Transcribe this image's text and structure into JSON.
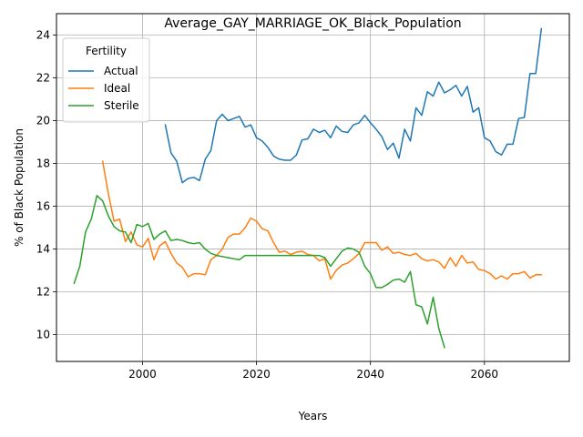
{
  "chart_data": {
    "type": "line",
    "title": "Average_GAY_MARRIAGE_OK_Black_Population",
    "xlabel": "Years",
    "ylabel": "% of Black Population",
    "xlim": [
      1984.9,
      2074.9
    ],
    "ylim": [
      8.75,
      25.0
    ],
    "xticks": [
      2000,
      2020,
      2040,
      2060
    ],
    "yticks": [
      10,
      12,
      14,
      16,
      18,
      20,
      22,
      24
    ],
    "grid": true,
    "legend": {
      "title": "Fertility",
      "placement": "top-left"
    },
    "series": [
      {
        "name": "Actual",
        "color": "#1f77b4",
        "points": [
          [
            2004,
            19.8
          ],
          [
            2005,
            18.5
          ],
          [
            2006,
            18.1
          ],
          [
            2007,
            17.1
          ],
          [
            2008,
            17.3
          ],
          [
            2009,
            17.35
          ],
          [
            2010,
            17.2
          ],
          [
            2011,
            18.2
          ],
          [
            2012,
            18.6
          ],
          [
            2013,
            20.0
          ],
          [
            2014,
            20.3
          ],
          [
            2015,
            20.0
          ],
          [
            2016,
            20.1
          ],
          [
            2017,
            20.2
          ],
          [
            2018,
            19.7
          ],
          [
            2019,
            19.8
          ],
          [
            2020,
            19.2
          ],
          [
            2021,
            19.05
          ],
          [
            2022,
            18.75
          ],
          [
            2023,
            18.35
          ],
          [
            2024,
            18.2
          ],
          [
            2025,
            18.15
          ],
          [
            2026,
            18.15
          ],
          [
            2027,
            18.4
          ],
          [
            2028,
            19.1
          ],
          [
            2029,
            19.15
          ],
          [
            2030,
            19.6
          ],
          [
            2031,
            19.45
          ],
          [
            2032,
            19.55
          ],
          [
            2033,
            19.2
          ],
          [
            2034,
            19.75
          ],
          [
            2035,
            19.5
          ],
          [
            2036,
            19.45
          ],
          [
            2037,
            19.8
          ],
          [
            2038,
            19.9
          ],
          [
            2039,
            20.25
          ],
          [
            2040,
            19.9
          ],
          [
            2041,
            19.6
          ],
          [
            2042,
            19.25
          ],
          [
            2043,
            18.65
          ],
          [
            2044,
            18.95
          ],
          [
            2045,
            18.25
          ],
          [
            2046,
            19.6
          ],
          [
            2047,
            19.05
          ],
          [
            2048,
            20.6
          ],
          [
            2049,
            20.25
          ],
          [
            2050,
            21.35
          ],
          [
            2051,
            21.15
          ],
          [
            2052,
            21.8
          ],
          [
            2053,
            21.3
          ],
          [
            2054,
            21.45
          ],
          [
            2055,
            21.65
          ],
          [
            2056,
            21.15
          ],
          [
            2057,
            21.6
          ],
          [
            2058,
            20.4
          ],
          [
            2059,
            20.6
          ],
          [
            2060,
            19.2
          ],
          [
            2061,
            19.05
          ],
          [
            2062,
            18.55
          ],
          [
            2063,
            18.4
          ],
          [
            2064,
            18.9
          ],
          [
            2065,
            18.9
          ],
          [
            2066,
            20.1
          ],
          [
            2067,
            20.15
          ],
          [
            2068,
            22.2
          ],
          [
            2069,
            22.2
          ],
          [
            2070,
            24.3
          ]
        ]
      },
      {
        "name": "Ideal",
        "color": "#ff7f0e",
        "points": [
          [
            1993,
            18.1
          ],
          [
            1994,
            16.6
          ],
          [
            1995,
            15.3
          ],
          [
            1996,
            15.4
          ],
          [
            1997,
            14.35
          ],
          [
            1998,
            14.8
          ],
          [
            1999,
            14.2
          ],
          [
            2000,
            14.1
          ],
          [
            2001,
            14.5
          ],
          [
            2002,
            13.5
          ],
          [
            2003,
            14.15
          ],
          [
            2004,
            14.35
          ],
          [
            2005,
            13.8
          ],
          [
            2006,
            13.35
          ],
          [
            2007,
            13.15
          ],
          [
            2008,
            12.7
          ],
          [
            2009,
            12.85
          ],
          [
            2010,
            12.85
          ],
          [
            2011,
            12.8
          ],
          [
            2012,
            13.5
          ],
          [
            2013,
            13.7
          ],
          [
            2014,
            14.0
          ],
          [
            2015,
            14.55
          ],
          [
            2016,
            14.7
          ],
          [
            2017,
            14.7
          ],
          [
            2018,
            15.0
          ],
          [
            2019,
            15.45
          ],
          [
            2020,
            15.3
          ],
          [
            2021,
            14.95
          ],
          [
            2022,
            14.85
          ],
          [
            2023,
            14.3
          ],
          [
            2024,
            13.85
          ],
          [
            2025,
            13.9
          ],
          [
            2026,
            13.75
          ],
          [
            2027,
            13.85
          ],
          [
            2028,
            13.9
          ],
          [
            2029,
            13.75
          ],
          [
            2030,
            13.7
          ],
          [
            2031,
            13.45
          ],
          [
            2032,
            13.55
          ],
          [
            2033,
            12.6
          ],
          [
            2034,
            13.0
          ],
          [
            2035,
            13.25
          ],
          [
            2036,
            13.35
          ],
          [
            2037,
            13.55
          ],
          [
            2038,
            13.8
          ],
          [
            2039,
            14.3
          ],
          [
            2040,
            14.3
          ],
          [
            2041,
            14.3
          ],
          [
            2042,
            13.95
          ],
          [
            2043,
            14.1
          ],
          [
            2044,
            13.8
          ],
          [
            2045,
            13.85
          ],
          [
            2046,
            13.75
          ],
          [
            2047,
            13.7
          ],
          [
            2048,
            13.8
          ],
          [
            2049,
            13.55
          ],
          [
            2050,
            13.45
          ],
          [
            2051,
            13.5
          ],
          [
            2052,
            13.4
          ],
          [
            2053,
            13.1
          ],
          [
            2054,
            13.6
          ],
          [
            2055,
            13.2
          ],
          [
            2056,
            13.7
          ],
          [
            2057,
            13.35
          ],
          [
            2058,
            13.4
          ],
          [
            2059,
            13.05
          ],
          [
            2060,
            13.0
          ],
          [
            2061,
            12.85
          ],
          [
            2062,
            12.6
          ],
          [
            2063,
            12.75
          ],
          [
            2064,
            12.6
          ],
          [
            2065,
            12.85
          ],
          [
            2066,
            12.85
          ],
          [
            2067,
            12.95
          ],
          [
            2068,
            12.65
          ],
          [
            2069,
            12.8
          ],
          [
            2070,
            12.8
          ]
        ]
      },
      {
        "name": "Sterile",
        "color": "#2ca02c",
        "points": [
          [
            1988,
            12.4
          ],
          [
            1989,
            13.2
          ],
          [
            1990,
            14.8
          ],
          [
            1991,
            15.4
          ],
          [
            1992,
            16.5
          ],
          [
            1993,
            16.25
          ],
          [
            1994,
            15.55
          ],
          [
            1995,
            15.05
          ],
          [
            1996,
            14.85
          ],
          [
            1997,
            14.8
          ],
          [
            1998,
            14.3
          ],
          [
            1999,
            15.15
          ],
          [
            2000,
            15.05
          ],
          [
            2001,
            15.2
          ],
          [
            2002,
            14.45
          ],
          [
            2003,
            14.7
          ],
          [
            2004,
            14.85
          ],
          [
            2005,
            14.4
          ],
          [
            2006,
            14.45
          ],
          [
            2007,
            14.4
          ],
          [
            2008,
            14.3
          ],
          [
            2009,
            14.25
          ],
          [
            2010,
            14.3
          ],
          [
            2011,
            14.0
          ],
          [
            2012,
            13.8
          ],
          [
            2013,
            13.7
          ],
          [
            2014,
            13.65
          ],
          [
            2015,
            13.6
          ],
          [
            2016,
            13.55
          ],
          [
            2017,
            13.5
          ],
          [
            2018,
            13.7
          ],
          [
            2019,
            13.7
          ],
          [
            2020,
            13.7
          ],
          [
            2021,
            13.7
          ],
          [
            2022,
            13.7
          ],
          [
            2023,
            13.7
          ],
          [
            2024,
            13.7
          ],
          [
            2025,
            13.7
          ],
          [
            2026,
            13.7
          ],
          [
            2027,
            13.7
          ],
          [
            2028,
            13.7
          ],
          [
            2029,
            13.7
          ],
          [
            2030,
            13.7
          ],
          [
            2031,
            13.7
          ],
          [
            2032,
            13.6
          ],
          [
            2033,
            13.2
          ],
          [
            2034,
            13.55
          ],
          [
            2035,
            13.9
          ],
          [
            2036,
            14.05
          ],
          [
            2037,
            14.0
          ],
          [
            2038,
            13.85
          ],
          [
            2039,
            13.2
          ],
          [
            2040,
            12.85
          ],
          [
            2041,
            12.2
          ],
          [
            2042,
            12.2
          ],
          [
            2043,
            12.35
          ],
          [
            2044,
            12.55
          ],
          [
            2045,
            12.6
          ],
          [
            2046,
            12.45
          ],
          [
            2047,
            12.95
          ],
          [
            2048,
            11.4
          ],
          [
            2049,
            11.3
          ],
          [
            2050,
            10.5
          ],
          [
            2051,
            11.75
          ],
          [
            2052,
            10.3
          ],
          [
            2053,
            9.4
          ]
        ]
      }
    ]
  }
}
